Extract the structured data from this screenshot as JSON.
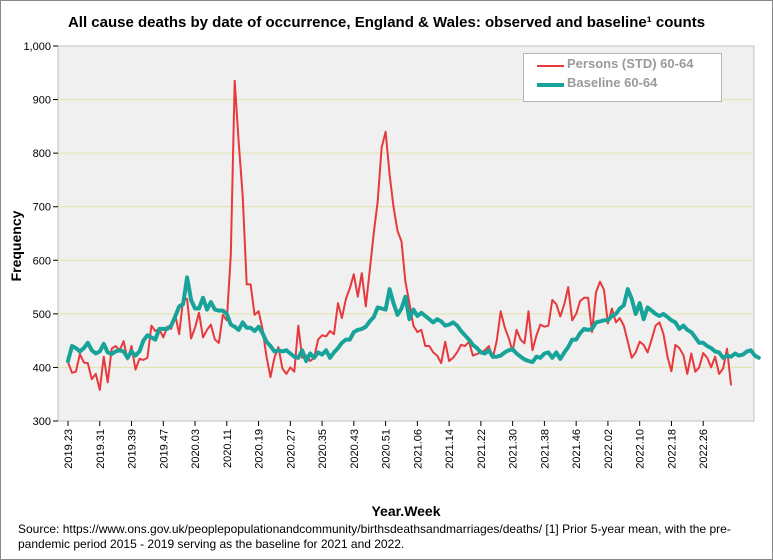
{
  "chart_data": {
    "type": "line",
    "title": "All cause deaths by date of occurrence, England & Wales: observed and baseline¹ counts",
    "xlabel": "Year.Week",
    "ylabel": "Frequency",
    "ylim": [
      300,
      1000
    ],
    "yticks": [
      300,
      400,
      500,
      600,
      700,
      800,
      900,
      1000
    ],
    "ytick_labels": [
      "300",
      "400",
      "500",
      "600",
      "700",
      "800",
      "900",
      "1,000"
    ],
    "xtick_labels": [
      "2019.23",
      "2019.31",
      "2019.39",
      "2019.47",
      "2020.03",
      "2020.11",
      "2020.19",
      "2020.27",
      "2020.35",
      "2020.43",
      "2020.51",
      "2021.06",
      "2021.14",
      "2021.22",
      "2021.30",
      "2021.38",
      "2021.46",
      "2022.02",
      "2022.10",
      "2022.18",
      "2022.26"
    ],
    "grid": "horizontal",
    "legend_position": "top-right",
    "series": [
      {
        "name": "Persons (STD) 60-64",
        "color": "#e8393d",
        "values": [
          410,
          390,
          392,
          425,
          409,
          408,
          378,
          388,
          358,
          420,
          372,
          435,
          440,
          432,
          449,
          415,
          440,
          396,
          416,
          414,
          418,
          478,
          468,
          472,
          456,
          476,
          472,
          498,
          462,
          527,
          528,
          454,
          474,
          502,
          456,
          470,
          480,
          452,
          446,
          498,
          488,
          610,
          935,
          820,
          720,
          555,
          555,
          498,
          505,
          472,
          420,
          382,
          418,
          438,
          398,
          388,
          400,
          392,
          478,
          418,
          422,
          412,
          418,
          452,
          460,
          458,
          468,
          462,
          520,
          492,
          528,
          548,
          574,
          532,
          576,
          514,
          580,
          650,
          710,
          810,
          840,
          760,
          700,
          655,
          635,
          560,
          520,
          478,
          466,
          470,
          440,
          440,
          428,
          422,
          408,
          448,
          412,
          418,
          428,
          442,
          440,
          448,
          422,
          425,
          428,
          432,
          440,
          418,
          450,
          505,
          475,
          455,
          430,
          470,
          452,
          445,
          505,
          432,
          460,
          480,
          476,
          478,
          526,
          518,
          495,
          518,
          550,
          488,
          500,
          524,
          530,
          530,
          466,
          540,
          560,
          545,
          482,
          510,
          484,
          492,
          478,
          448,
          418,
          428,
          448,
          442,
          428,
          452,
          478,
          484,
          462,
          420,
          393,
          442,
          436,
          423,
          388,
          426,
          392,
          400,
          427,
          418,
          400,
          420,
          388,
          398,
          435,
          368
        ]
      },
      {
        "name": "Baseline 60-64",
        "color": "#17a399",
        "values": [
          412,
          440,
          436,
          430,
          436,
          446,
          432,
          426,
          430,
          444,
          428,
          425,
          430,
          432,
          430,
          418,
          430,
          422,
          430,
          450,
          460,
          456,
          452,
          472,
          472,
          472,
          478,
          495,
          514,
          518,
          568,
          526,
          510,
          510,
          530,
          508,
          522,
          508,
          506,
          506,
          500,
          480,
          476,
          470,
          484,
          474,
          474,
          468,
          476,
          464,
          448,
          440,
          430,
          432,
          430,
          432,
          426,
          420,
          418,
          432,
          412,
          426,
          418,
          428,
          424,
          432,
          418,
          428,
          436,
          446,
          452,
          452,
          466,
          470,
          472,
          476,
          486,
          494,
          512,
          510,
          508,
          546,
          520,
          498,
          510,
          532,
          490,
          508,
          496,
          502,
          496,
          490,
          484,
          490,
          486,
          478,
          480,
          484,
          478,
          468,
          460,
          452,
          442,
          436,
          428,
          426,
          432,
          420,
          420,
          422,
          428,
          432,
          434,
          426,
          420,
          415,
          412,
          410,
          420,
          418,
          426,
          428,
          418,
          428,
          416,
          428,
          438,
          452,
          452,
          464,
          472,
          470,
          472,
          484,
          486,
          488,
          488,
          496,
          500,
          510,
          516,
          546,
          528,
          500,
          520,
          490,
          512,
          506,
          500,
          496,
          500,
          494,
          488,
          484,
          472,
          478,
          470,
          466,
          456,
          446,
          446,
          440,
          436,
          430,
          428,
          418,
          422,
          420,
          426,
          422,
          424,
          430,
          432,
          422,
          418
        ]
      }
    ],
    "source_text": "Source: https://www.ons.gov.uk/peoplepopulationandcommunity/birthsdeathsandmarriages/deaths/  [1] Prior 5-year mean, with the pre-pandemic period 2015 - 2019 serving as the baseline for 2021 and 2022."
  }
}
